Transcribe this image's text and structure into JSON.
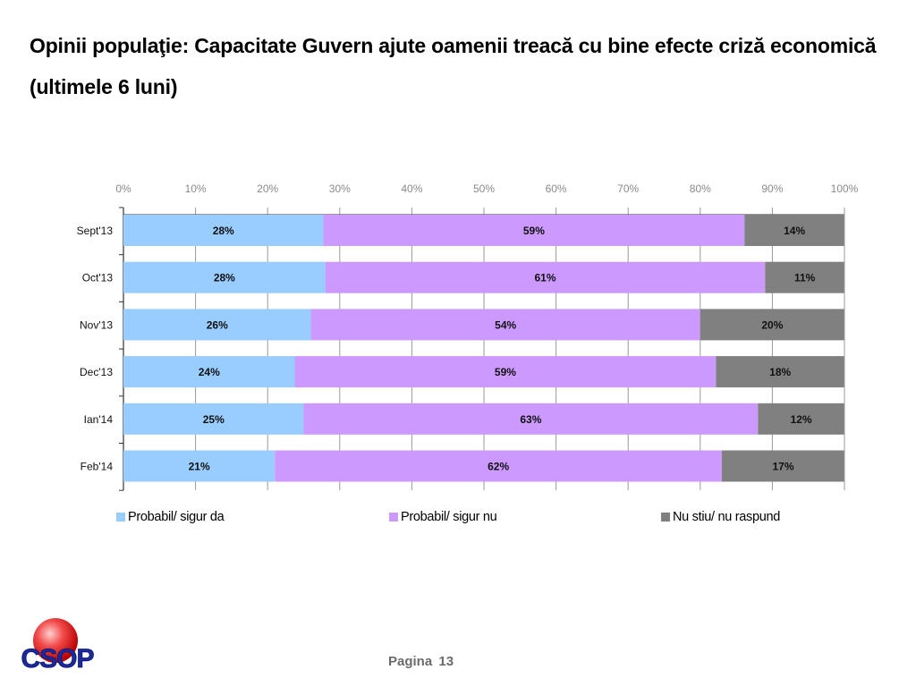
{
  "title": "Opinii populaţie: Capacitate Guvern ajute oamenii treacă cu bine efecte criză economică (ultimele 6 luni)",
  "footer": {
    "page_label": "Pagina",
    "page_number": "13"
  },
  "logo": {
    "text": "CSOP"
  },
  "colors": {
    "da": "#99ccff",
    "nu": "#cc99ff",
    "ns": "#808080"
  },
  "chart_data": {
    "type": "bar",
    "orientation": "horizontal",
    "stacked": "percent",
    "title": "Opinii populaţie: Capacitate Guvern ajute oamenii treacă cu bine efecte criză economică (ultimele 6 luni)",
    "xlabel": "",
    "ylabel": "",
    "xlim": [
      0,
      100
    ],
    "x_ticks": [
      "0%",
      "10%",
      "20%",
      "30%",
      "40%",
      "50%",
      "60%",
      "70%",
      "80%",
      "90%",
      "100%"
    ],
    "x_axis_position": "top",
    "grid": true,
    "legend_position": "bottom",
    "categories": [
      "Sept'13",
      "Oct'13",
      "Nov'13",
      "Dec'13",
      "Ian'14",
      "Feb'14"
    ],
    "series": [
      {
        "name": "Probabil/ sigur da",
        "color": "#99ccff",
        "values": [
          28,
          28,
          26,
          24,
          25,
          21
        ],
        "labels": [
          "28%",
          "28%",
          "26%",
          "24%",
          "25%",
          "21%"
        ]
      },
      {
        "name": "Probabil/ sigur nu",
        "color": "#cc99ff",
        "values": [
          59,
          61,
          54,
          59,
          63,
          62
        ],
        "labels": [
          "59%",
          "61%",
          "54%",
          "59%",
          "63%",
          "62%"
        ]
      },
      {
        "name": "Nu stiu/ nu raspund",
        "color": "#808080",
        "values": [
          14,
          11,
          20,
          18,
          12,
          17
        ],
        "labels": [
          "14%",
          "11%",
          "20%",
          "18%",
          "12%",
          "17%"
        ]
      }
    ]
  }
}
